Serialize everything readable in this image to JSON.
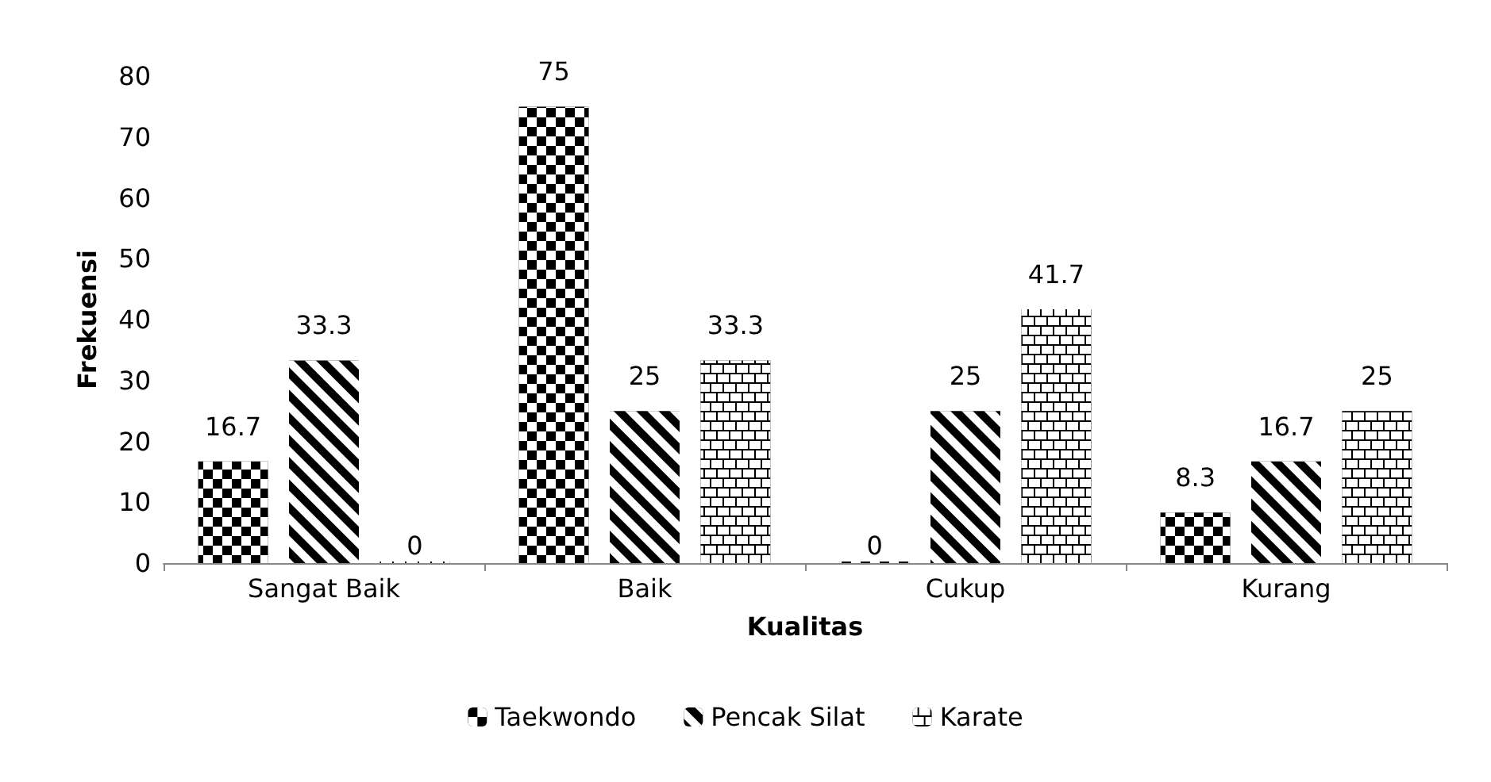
{
  "chart_data": {
    "type": "bar",
    "xlabel": "Kualitas",
    "ylabel": "Frekuensi",
    "categories": [
      "Sangat Baik",
      "Baik",
      "Cukup",
      "Kurang"
    ],
    "series": [
      {
        "name": "Taekwondo",
        "color": "#000000",
        "values": [
          16.7,
          75,
          0,
          8.3
        ]
      },
      {
        "name": "Pencak Silat",
        "color": "#000000",
        "values": [
          33.3,
          25,
          25,
          16.7
        ]
      },
      {
        "name": "Karate",
        "color": "#000000",
        "values": [
          0,
          33.3,
          41.7,
          25
        ]
      }
    ],
    "ylim": [
      0,
      80
    ],
    "yticks": [
      0,
      10,
      20,
      30,
      40,
      50,
      60,
      70,
      80
    ],
    "grid": false,
    "legend": "bottom",
    "data_labels": true
  }
}
